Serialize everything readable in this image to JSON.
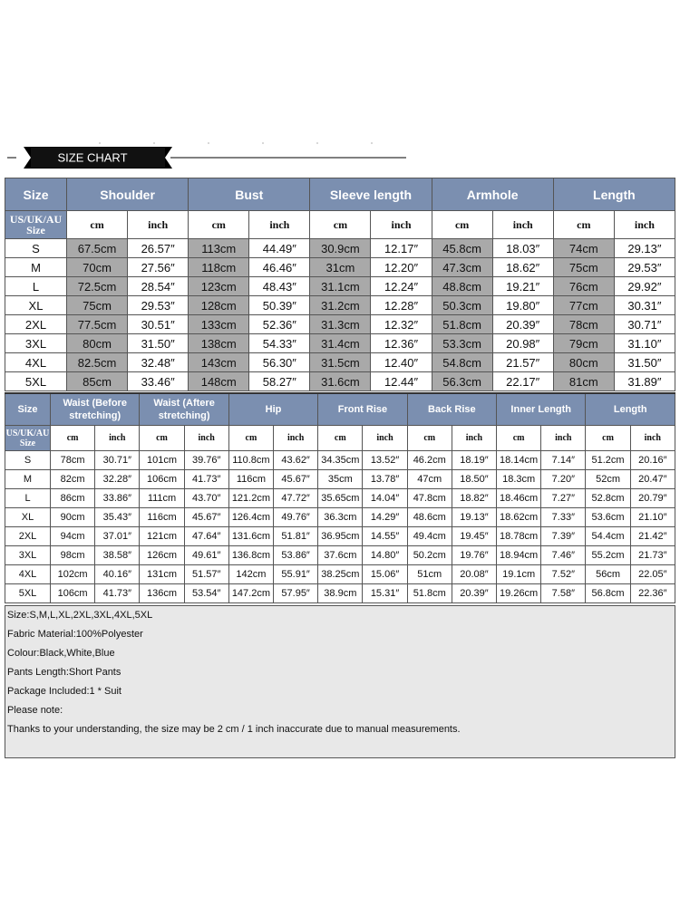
{
  "header": {
    "title": "SIZE CHART"
  },
  "top_table": {
    "groups": [
      "Size",
      "Shoulder",
      "Bust",
      "Sleeve length",
      "Armhole",
      "Length"
    ],
    "units": [
      "US/UK/AU Size",
      "cm",
      "inch",
      "cm",
      "inch",
      "cm",
      "inch",
      "cm",
      "inch",
      "cm",
      "inch"
    ],
    "rows": [
      [
        "S",
        "67.5cm",
        "26.57″",
        "113cm",
        "44.49″",
        "30.9cm",
        "12.17″",
        "45.8cm",
        "18.03″",
        "74cm",
        "29.13″"
      ],
      [
        "M",
        "70cm",
        "27.56″",
        "118cm",
        "46.46″",
        "31cm",
        "12.20″",
        "47.3cm",
        "18.62″",
        "75cm",
        "29.53″"
      ],
      [
        "L",
        "72.5cm",
        "28.54″",
        "123cm",
        "48.43″",
        "31.1cm",
        "12.24″",
        "48.8cm",
        "19.21″",
        "76cm",
        "29.92″"
      ],
      [
        "XL",
        "75cm",
        "29.53″",
        "128cm",
        "50.39″",
        "31.2cm",
        "12.28″",
        "50.3cm",
        "19.80″",
        "77cm",
        "30.31″"
      ],
      [
        "2XL",
        "77.5cm",
        "30.51″",
        "133cm",
        "52.36″",
        "31.3cm",
        "12.32″",
        "51.8cm",
        "20.39″",
        "78cm",
        "30.71″"
      ],
      [
        "3XL",
        "80cm",
        "31.50″",
        "138cm",
        "54.33″",
        "31.4cm",
        "12.36″",
        "53.3cm",
        "20.98″",
        "79cm",
        "31.10″"
      ],
      [
        "4XL",
        "82.5cm",
        "32.48″",
        "143cm",
        "56.30″",
        "31.5cm",
        "12.40″",
        "54.8cm",
        "21.57″",
        "80cm",
        "31.50″"
      ],
      [
        "5XL",
        "85cm",
        "33.46″",
        "148cm",
        "58.27″",
        "31.6cm",
        "12.44″",
        "56.3cm",
        "22.17″",
        "81cm",
        "31.89″"
      ]
    ]
  },
  "bottom_table": {
    "groups": [
      "Size",
      "Waist (Before stretching)",
      "Waist (Aftere stretching)",
      "Hip",
      "Front Rise",
      "Back Rise",
      "Inner Length",
      "Length"
    ],
    "units": [
      "US/UK/AU Size",
      "cm",
      "inch",
      "cm",
      "inch",
      "cm",
      "inch",
      "cm",
      "inch",
      "cm",
      "inch",
      "cm",
      "inch",
      "cm",
      "inch"
    ],
    "rows": [
      [
        "S",
        "78cm",
        "30.71″",
        "101cm",
        "39.76″",
        "110.8cm",
        "43.62″",
        "34.35cm",
        "13.52″",
        "46.2cm",
        "18.19″",
        "18.14cm",
        "7.14″",
        "51.2cm",
        "20.16″"
      ],
      [
        "M",
        "82cm",
        "32.28″",
        "106cm",
        "41.73″",
        "116cm",
        "45.67″",
        "35cm",
        "13.78″",
        "47cm",
        "18.50″",
        "18.3cm",
        "7.20″",
        "52cm",
        "20.47″"
      ],
      [
        "L",
        "86cm",
        "33.86″",
        "111cm",
        "43.70″",
        "121.2cm",
        "47.72″",
        "35.65cm",
        "14.04″",
        "47.8cm",
        "18.82″",
        "18.46cm",
        "7.27″",
        "52.8cm",
        "20.79″"
      ],
      [
        "XL",
        "90cm",
        "35.43″",
        "116cm",
        "45.67″",
        "126.4cm",
        "49.76″",
        "36.3cm",
        "14.29″",
        "48.6cm",
        "19.13″",
        "18.62cm",
        "7.33″",
        "53.6cm",
        "21.10″"
      ],
      [
        "2XL",
        "94cm",
        "37.01″",
        "121cm",
        "47.64″",
        "131.6cm",
        "51.81″",
        "36.95cm",
        "14.55″",
        "49.4cm",
        "19.45″",
        "18.78cm",
        "7.39″",
        "54.4cm",
        "21.42″"
      ],
      [
        "3XL",
        "98cm",
        "38.58″",
        "126cm",
        "49.61″",
        "136.8cm",
        "53.86″",
        "37.6cm",
        "14.80″",
        "50.2cm",
        "19.76″",
        "18.94cm",
        "7.46″",
        "55.2cm",
        "21.73″"
      ],
      [
        "4XL",
        "102cm",
        "40.16″",
        "131cm",
        "51.57″",
        "142cm",
        "55.91″",
        "38.25cm",
        "15.06″",
        "51cm",
        "20.08″",
        "19.1cm",
        "7.52″",
        "56cm",
        "22.05″"
      ],
      [
        "5XL",
        "106cm",
        "41.73″",
        "136cm",
        "53.54″",
        "147.2cm",
        "57.95″",
        "38.9cm",
        "15.31″",
        "51.8cm",
        "20.39″",
        "19.26cm",
        "7.58″",
        "56.8cm",
        "22.36″"
      ]
    ]
  },
  "notes": [
    "Size:S,M,L,XL,2XL,3XL,4XL,5XL",
    "Fabric Material:100%Polyester",
    "Colour:Black,White,Blue",
    "Pants Length:Short Pants",
    "Package Included:1 * Suit",
    "Please note:",
    "Thanks to your understanding, the size may be 2 cm / 1 inch inaccurate due to manual measurements."
  ]
}
